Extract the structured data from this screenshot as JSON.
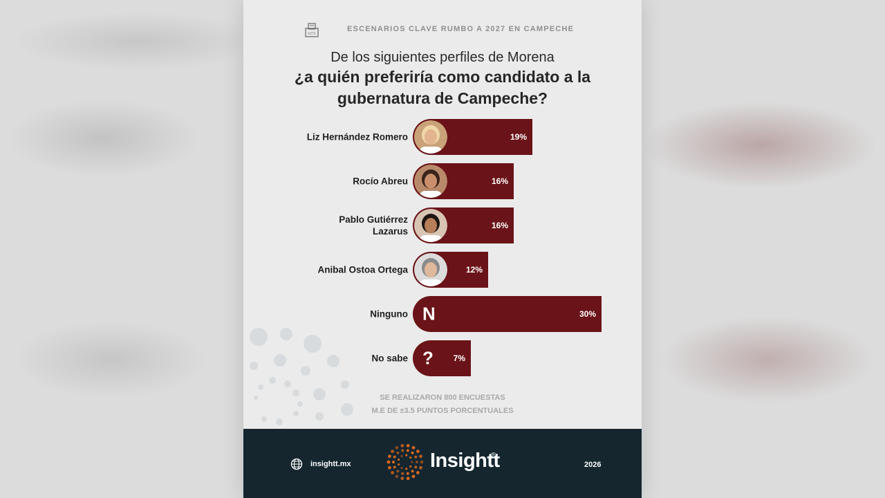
{
  "header": {
    "title": "ESCENARIOS CLAVE RUMBO A 2027 EN CAMPECHE",
    "icon": "ballot-box-icon",
    "icon_text": "VOTE"
  },
  "question": {
    "line1": "De los siguientes perfiles de Morena",
    "line2": "¿a quién preferiría como candidato a la gubernatura de Campeche?"
  },
  "chart_data": {
    "type": "bar",
    "orientation": "horizontal",
    "categories": [
      "Liz Hernández Romero",
      "Rocío Abreu",
      "Pablo Gutiérrez Lazarus",
      "Anibal Ostoa Ortega",
      "Ninguno",
      "No sabe"
    ],
    "values": [
      19,
      16,
      16,
      12,
      30,
      7
    ],
    "value_labels": [
      "19%",
      "16%",
      "16%",
      "12%",
      "30%",
      "7%"
    ],
    "bar_color": "#6a1318",
    "xlim": [
      0,
      30
    ]
  },
  "rows": [
    {
      "label": "Liz Hernández Romero",
      "value": 19,
      "value_label": "19%",
      "marker": "photo",
      "icon": "candidate-photo-icon"
    },
    {
      "label": "Rocío Abreu",
      "value": 16,
      "value_label": "16%",
      "marker": "photo",
      "icon": "candidate-photo-icon"
    },
    {
      "label": "Pablo Gutiérrez Lazarus",
      "value": 16,
      "value_label": "16%",
      "marker": "photo",
      "icon": "candidate-photo-icon"
    },
    {
      "label": "Anibal Ostoa Ortega",
      "value": 12,
      "value_label": "12%",
      "marker": "photo",
      "icon": "candidate-photo-icon"
    },
    {
      "label": "Ninguno",
      "value": 30,
      "value_label": "30%",
      "marker": "glyph",
      "glyph": "N"
    },
    {
      "label": "No sabe",
      "value": 7,
      "value_label": "7%",
      "marker": "glyph",
      "glyph": "?"
    }
  ],
  "notes": {
    "line1": "SE REALIZARON 800 ENCUESTAS",
    "line2": "M.E DE ±3.5 PUNTOS PORCENTUALES"
  },
  "footer": {
    "website": "insightt.mx",
    "brand": "Insightt",
    "registered": "®",
    "year": "2026",
    "background": "#15262f",
    "accent": "#e06a1e"
  }
}
